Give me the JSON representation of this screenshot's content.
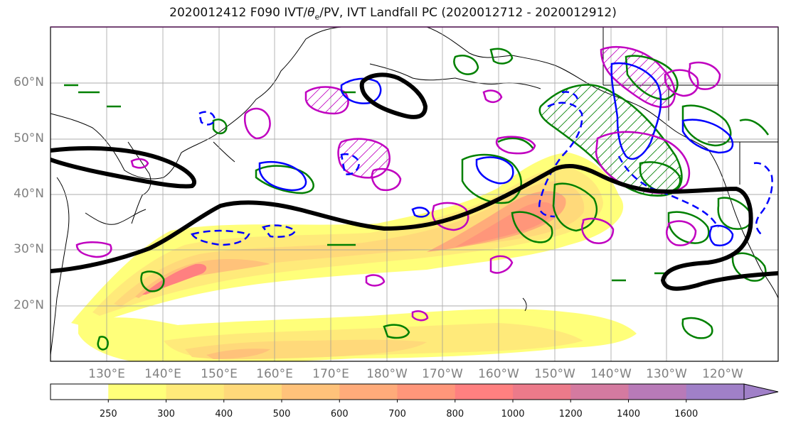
{
  "title_prefix": "2020012412 F090 IVT/",
  "title_theta": "θ",
  "title_theta_sub": "e",
  "title_suffix": "/PV, IVT Landfall PC (2020012712 - 2020012912)",
  "lat_labels": [
    "60°N",
    "50°N",
    "40°N",
    "30°N",
    "20°N"
  ],
  "lon_labels": [
    "130°E",
    "140°E",
    "150°E",
    "160°E",
    "170°E",
    "180°W",
    "170°W",
    "160°W",
    "150°W",
    "140°W",
    "130°W",
    "120°W"
  ],
  "colorbar": {
    "levels": [
      "250",
      "300",
      "400",
      "500",
      "600",
      "700",
      "800",
      "1000",
      "1200",
      "1400",
      "1600"
    ],
    "colors": [
      "#ffffff",
      "#ffff7a",
      "#ffea7a",
      "#ffd97a",
      "#ffc27a",
      "#ffab7a",
      "#ff967a",
      "#ff8080",
      "#ec7a8a",
      "#d47aa0",
      "#b87ab8",
      "#a080c8"
    ]
  },
  "legend_colors": {
    "ivt_fill": "#ffd97a",
    "theta_e": "#0000ff",
    "pv": "#008000",
    "landfall_pc": "#c000c0",
    "jet": "#000000"
  }
}
